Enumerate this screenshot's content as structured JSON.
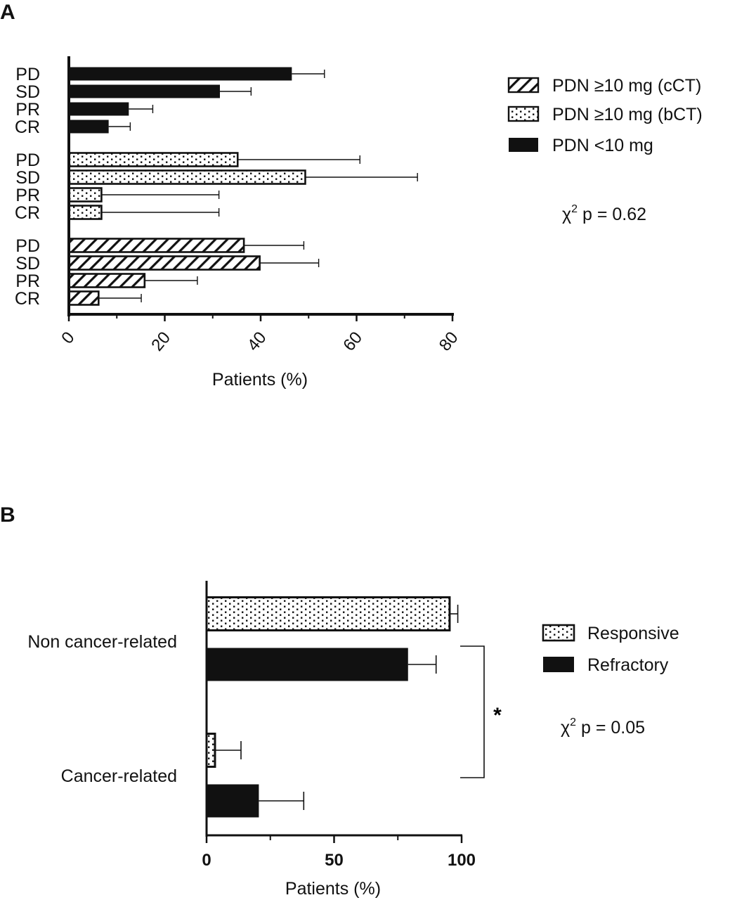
{
  "chart_data": [
    {
      "panel": "A",
      "type": "bar",
      "orientation": "horizontal",
      "xlabel": "Patients  (%)",
      "xlim": [
        0,
        80
      ],
      "xticks": [
        "0",
        "20",
        "40",
        "60",
        "80"
      ],
      "annotation_prefix": "χ",
      "annotation_sup": "2",
      "annotation_suffix": " p = 0.62",
      "legend_position": "right",
      "groups": [
        {
          "series": "PDN <10 mg",
          "pattern": "solid",
          "bars": [
            {
              "category": "PD",
              "value": 46.5,
              "error": 6.8
            },
            {
              "category": "SD",
              "value": 31.5,
              "error": 6.5
            },
            {
              "category": "PR",
              "value": 12.5,
              "error": 5.0
            },
            {
              "category": "CR",
              "value": 8.3,
              "error": 4.5
            }
          ]
        },
        {
          "series": "PDN ≥10 mg (bCT)",
          "pattern": "dots",
          "bars": [
            {
              "category": "PD",
              "value": 35.2,
              "error": 25.5
            },
            {
              "category": "SD",
              "value": 49.3,
              "error": 23.4
            },
            {
              "category": "PR",
              "value": 6.8,
              "error": 24.5
            },
            {
              "category": "CR",
              "value": 6.8,
              "error": 24.5
            }
          ]
        },
        {
          "series": "PDN ≥10 mg (cCT)",
          "pattern": "hatch",
          "bars": [
            {
              "category": "PD",
              "value": 36.5,
              "error": 12.5
            },
            {
              "category": "SD",
              "value": 39.8,
              "error": 12.3
            },
            {
              "category": "PR",
              "value": 15.8,
              "error": 11.0
            },
            {
              "category": "CR",
              "value": 6.2,
              "error": 8.9
            }
          ]
        }
      ],
      "legend": [
        {
          "label": "PDN ≥10 mg (cCT)",
          "pattern": "hatch"
        },
        {
          "label": "PDN ≥10 mg (bCT)",
          "pattern": "dots"
        },
        {
          "label": "PDN <10 mg",
          "pattern": "solid"
        }
      ]
    },
    {
      "panel": "B",
      "type": "bar",
      "orientation": "horizontal",
      "xlabel": "Patients  (%)",
      "xlim": [
        0,
        100
      ],
      "xticks": [
        "0",
        "50",
        "100"
      ],
      "categories": [
        "Non cancer-related",
        "Cancer-related"
      ],
      "annotation_prefix": "χ",
      "annotation_sup": "2",
      "annotation_suffix": " p = 0.05",
      "significance": "*",
      "legend_position": "right",
      "series": [
        {
          "name": "Responsive",
          "pattern": "dots",
          "values": [
            95.3,
            3.3
          ],
          "errors": [
            3.2,
            10.2
          ]
        },
        {
          "name": "Refractory",
          "pattern": "solid",
          "values": [
            79.0,
            20.5
          ],
          "errors": [
            11.0,
            17.6
          ]
        }
      ],
      "legend": [
        {
          "label": "Responsive",
          "pattern": "dots"
        },
        {
          "label": "Refractory",
          "pattern": "solid"
        }
      ]
    }
  ],
  "panel_letters": [
    "A",
    "B"
  ]
}
